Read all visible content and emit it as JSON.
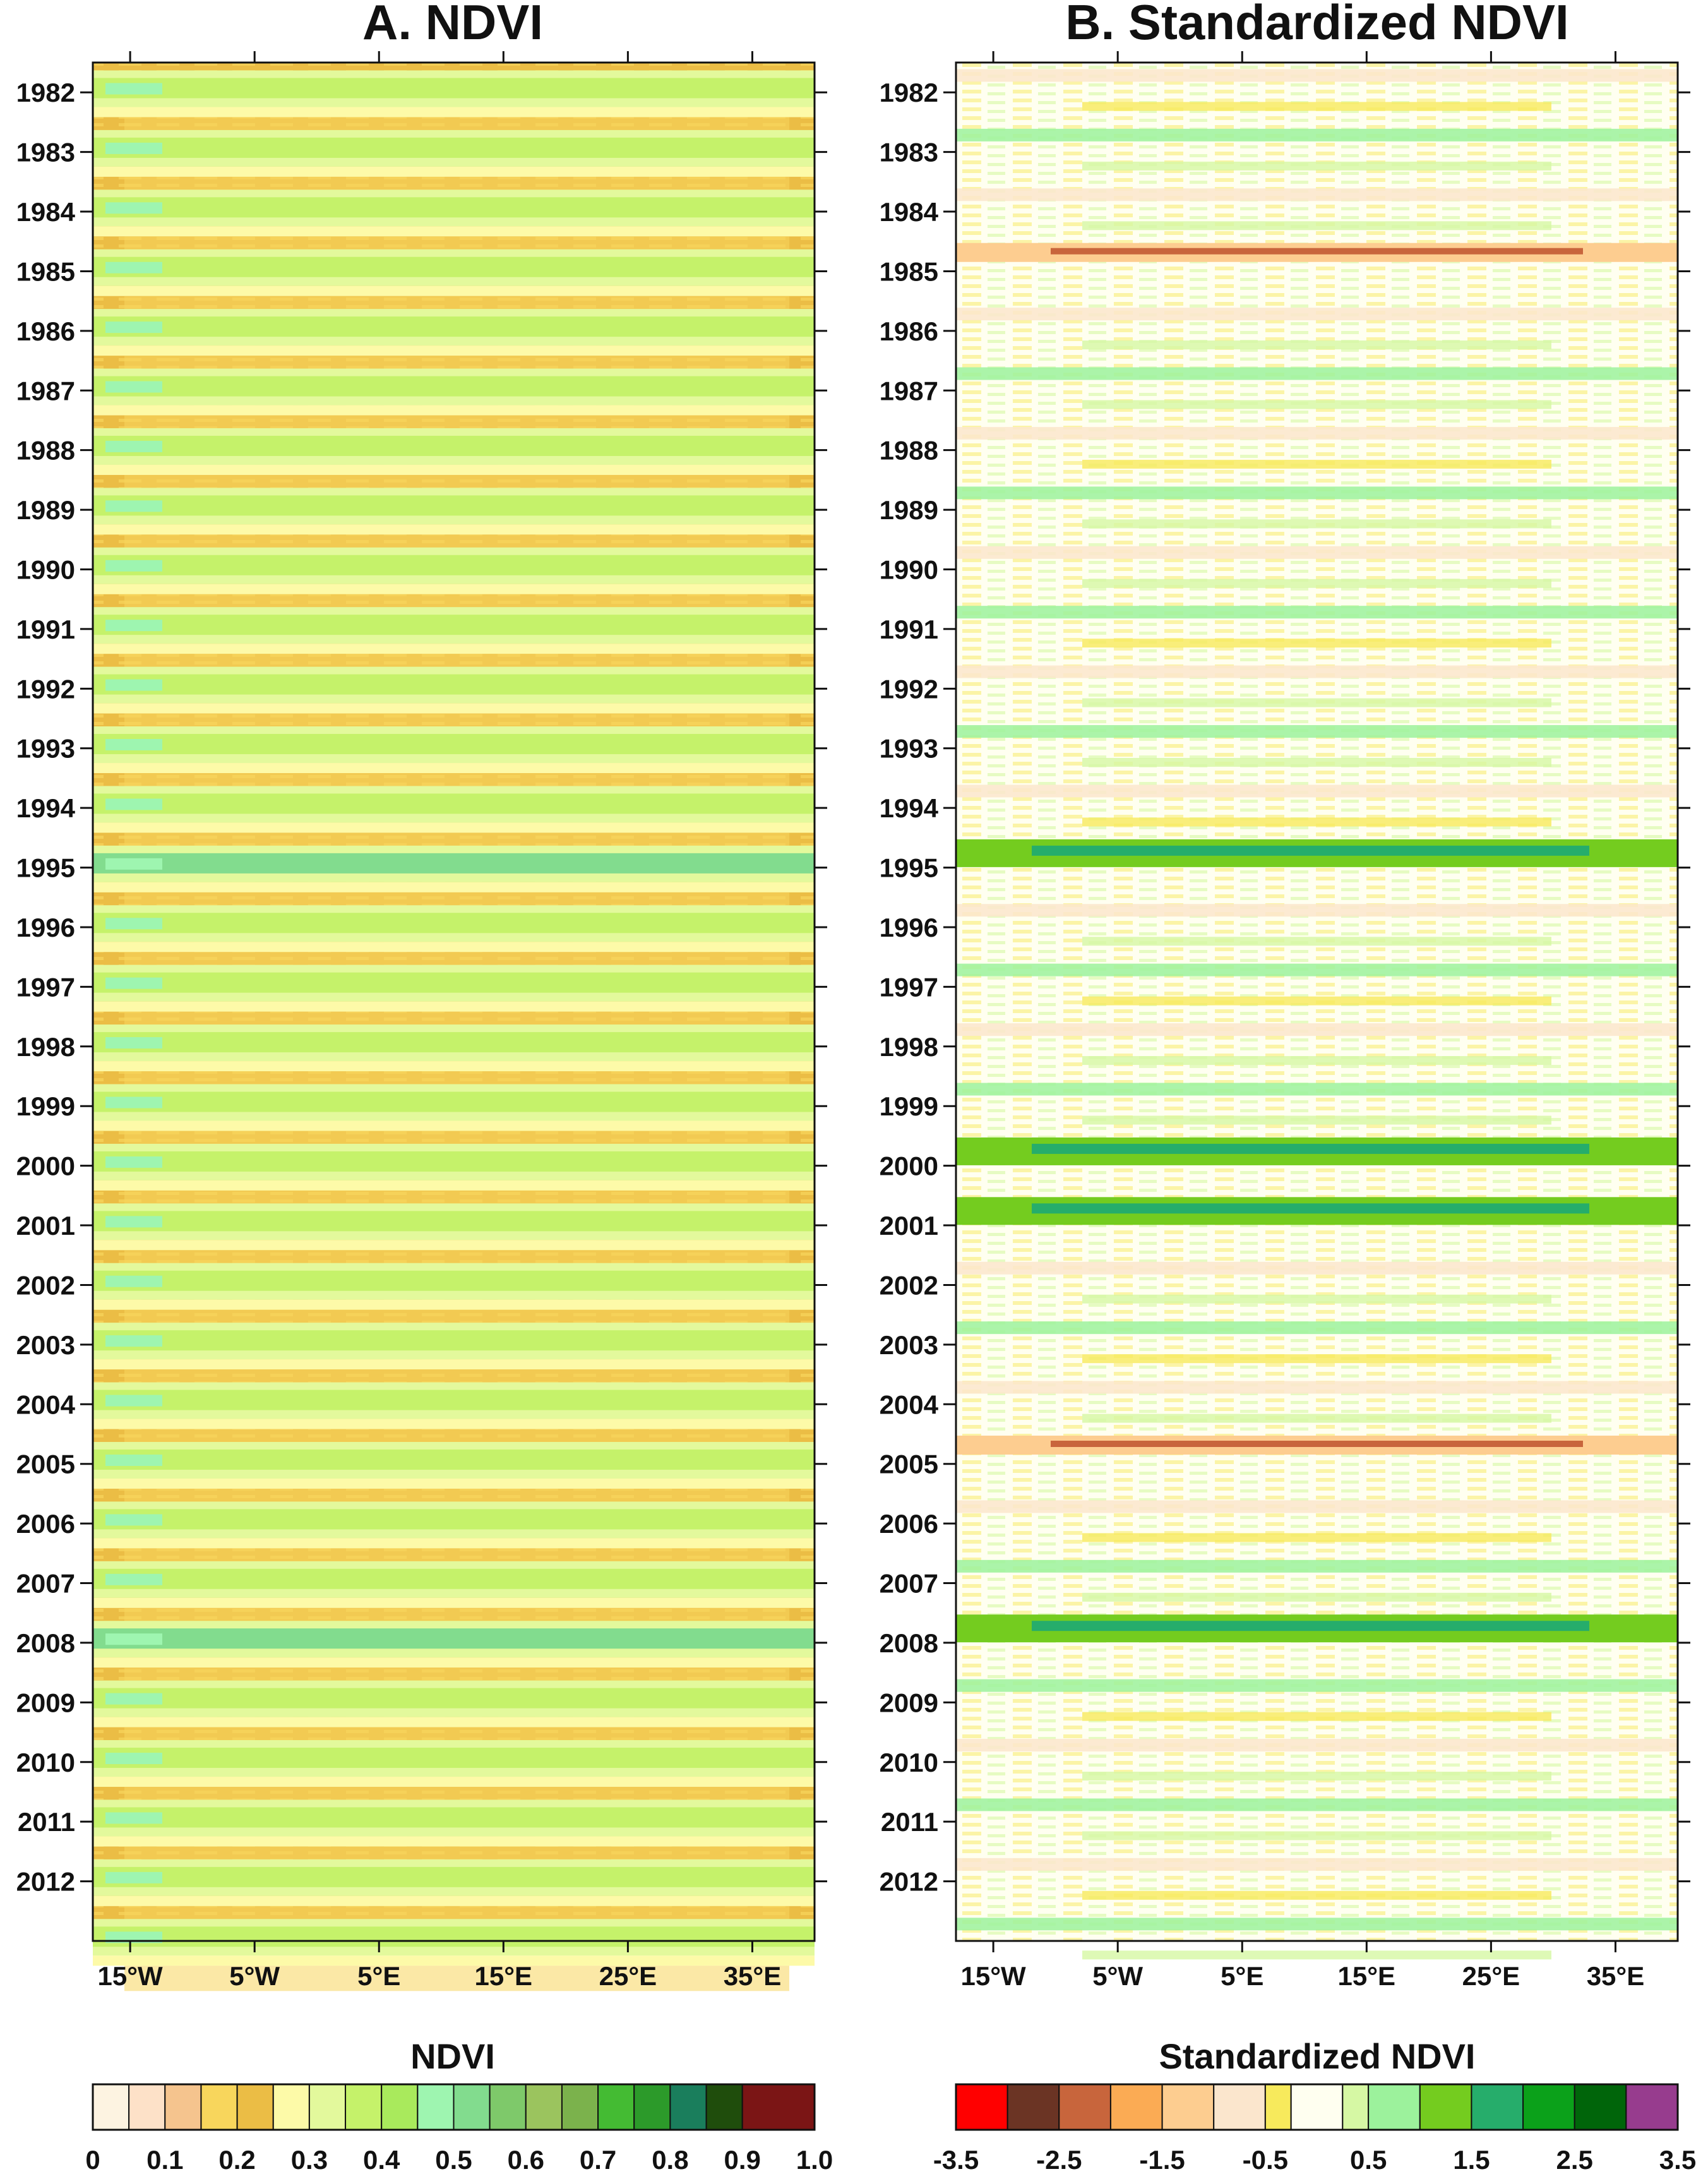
{
  "chart_data": [
    {
      "type": "heatmap",
      "title": "A. NDVI",
      "xlabel": "",
      "ylabel": "",
      "x_tick_labels": [
        "15°W",
        "5°W",
        "5°E",
        "15°E",
        "25°E",
        "35°E"
      ],
      "x_tick_values": [
        -15,
        -5,
        5,
        15,
        25,
        35
      ],
      "xlim": [
        -18,
        40
      ],
      "y_tick_labels": [
        "1982",
        "1983",
        "1984",
        "1985",
        "1986",
        "1987",
        "1988",
        "1989",
        "1990",
        "1991",
        "1992",
        "1993",
        "1994",
        "1995",
        "1996",
        "1997",
        "1998",
        "1999",
        "2000",
        "2001",
        "2002",
        "2003",
        "2004",
        "2005",
        "2006",
        "2007",
        "2008",
        "2009",
        "2010",
        "2011",
        "2012"
      ],
      "ylim": [
        1981.5,
        2013.0
      ],
      "y_reversed": true,
      "pattern": "seasonal NDVI cycle: low values 0.15-0.25 through most of each year, higher values 0.4-0.8 near the start of each year; wettest years 1995 and 2008",
      "colorbar": {
        "title": "NDVI",
        "boundary_labels": [
          "0",
          "0.1",
          "0.2",
          "0.3",
          "0.4",
          "0.5",
          "0.6",
          "0.7",
          "0.8",
          "0.9",
          "1.0"
        ],
        "boundaries": [
          0,
          0.05,
          0.1,
          0.15,
          0.2,
          0.25,
          0.3,
          0.35,
          0.4,
          0.45,
          0.5,
          0.55,
          0.6,
          0.65,
          0.7,
          0.75,
          0.8,
          0.85,
          0.9,
          1.0
        ],
        "colors": [
          "#fdf3e1",
          "#fde1c8",
          "#f5c48e",
          "#f8d65c",
          "#ebbd45",
          "#fdfaa8",
          "#e3f99c",
          "#c5f26a",
          "#a9ea5c",
          "#9ef5b0",
          "#82dc8e",
          "#7ec96a",
          "#9bc45e",
          "#7bb24c",
          "#44bb33",
          "#2c9a2a",
          "#1a7e5c",
          "#1f4d0c",
          "#7b1515"
        ]
      }
    },
    {
      "type": "heatmap",
      "title": "B. Standardized NDVI",
      "xlabel": "",
      "ylabel": "",
      "x_tick_labels": [
        "15°W",
        "5°W",
        "5°E",
        "15°E",
        "25°E",
        "35°E"
      ],
      "x_tick_values": [
        -15,
        -5,
        5,
        15,
        25,
        35
      ],
      "xlim": [
        -18,
        40
      ],
      "y_tick_labels": [
        "1982",
        "1983",
        "1984",
        "1985",
        "1986",
        "1987",
        "1988",
        "1989",
        "1990",
        "1991",
        "1992",
        "1993",
        "1994",
        "1995",
        "1996",
        "1997",
        "1998",
        "1999",
        "2000",
        "2001",
        "2002",
        "2003",
        "2004",
        "2005",
        "2006",
        "2007",
        "2008",
        "2009",
        "2010",
        "2011",
        "2012"
      ],
      "ylim": [
        1981.5,
        2013.0
      ],
      "y_reversed": true,
      "pattern": "standardized anomalies mostly between -1 and 1; strong negative anomalies 1984-1985 and 2004-2005; strong positive anomalies 1994-1995, 1999-2001 and 2007-2008",
      "colorbar": {
        "title": "Standardized NDVI",
        "boundary_labels": [
          "-3.5",
          "-2.5",
          "-1.5",
          "-0.5",
          "0.5",
          "1.5",
          "2.5",
          "3.5"
        ],
        "boundaries": [
          -3.5,
          -3,
          -2.5,
          -2,
          -1.5,
          -1,
          -0.5,
          -0.25,
          0.25,
          0.5,
          1,
          1.5,
          2,
          2.5,
          3,
          3.5
        ],
        "colors": [
          "#ff0000",
          "#6b3424",
          "#c8653c",
          "#fbab54",
          "#fdcd90",
          "#fbe6cd",
          "#f7ea5c",
          "#fffff0",
          "#d6f8a4",
          "#9cf29c",
          "#74cc1f",
          "#26ad6b",
          "#0ba11a",
          "#00650a",
          "#973c8e"
        ]
      }
    }
  ]
}
